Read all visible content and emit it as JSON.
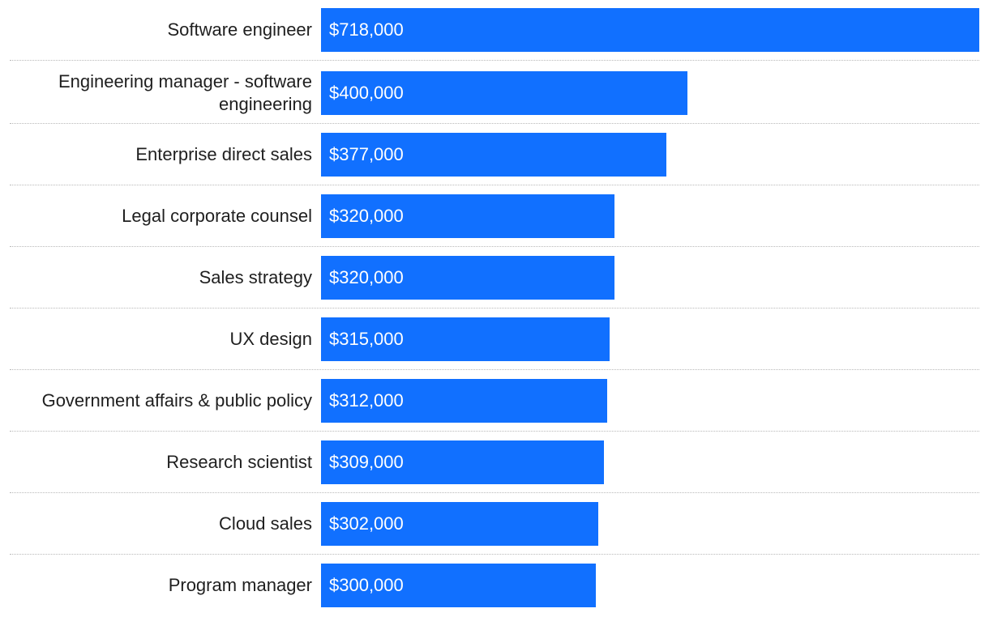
{
  "chart_data": {
    "type": "bar",
    "orientation": "horizontal",
    "title": "",
    "xlabel": "",
    "ylabel": "",
    "bar_color": "#1170ff",
    "value_format": "currency-usd",
    "xlim": [
      0,
      718000
    ],
    "categories": [
      "Software engineer",
      "Engineering manager - software engineering",
      "Enterprise direct sales",
      "Legal corporate counsel",
      "Sales strategy",
      "UX design",
      "Government affairs & public policy",
      "Research scientist",
      "Cloud sales",
      "Program manager"
    ],
    "values": [
      718000,
      400000,
      377000,
      320000,
      320000,
      315000,
      312000,
      309000,
      302000,
      300000
    ],
    "value_labels": [
      "$718,000",
      "$400,000",
      "$377,000",
      "$320,000",
      "$320,000",
      "$315,000",
      "$312,000",
      "$309,000",
      "$302,000",
      "$300,000"
    ]
  }
}
